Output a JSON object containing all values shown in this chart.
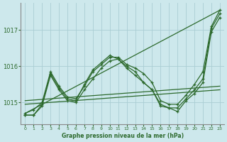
{
  "bg_color": "#cde8ec",
  "grid_color": "#aacdd4",
  "line_color": "#2d6a2d",
  "title": "Graphe pression niveau de la mer (hPa)",
  "xlim": [
    -0.5,
    23.5
  ],
  "ylim": [
    1014.4,
    1017.75
  ],
  "yticks": [
    1015,
    1016,
    1017
  ],
  "xticks": [
    0,
    1,
    2,
    3,
    4,
    5,
    6,
    7,
    8,
    9,
    10,
    11,
    12,
    13,
    14,
    15,
    16,
    17,
    18,
    19,
    20,
    21,
    22,
    23
  ],
  "series": {
    "line_diag": {
      "x": [
        0,
        23
      ],
      "y": [
        1014.7,
        1017.55
      ]
    },
    "line_flat1": {
      "x": [
        0,
        23
      ],
      "y": [
        1015.05,
        1015.45
      ]
    },
    "line_flat2": {
      "x": [
        0,
        23
      ],
      "y": [
        1014.95,
        1015.35
      ]
    },
    "line1": {
      "x": [
        0,
        1,
        2,
        3,
        4,
        5,
        6,
        7,
        8,
        9,
        10,
        11,
        12,
        13,
        14,
        15,
        16,
        17,
        18,
        19,
        20,
        21,
        22,
        23
      ],
      "y": [
        1014.7,
        1014.8,
        1015.0,
        1015.85,
        1015.45,
        1015.15,
        1015.1,
        1015.45,
        1015.85,
        1016.05,
        1016.25,
        1016.25,
        1016.05,
        1015.95,
        1015.8,
        1015.55,
        1015.05,
        1014.95,
        1014.95,
        1015.2,
        1015.5,
        1015.85,
        1017.1,
        1017.55
      ],
      "marker": "+"
    },
    "line2": {
      "x": [
        0,
        1,
        2,
        3,
        4,
        5,
        6,
        7,
        8,
        9,
        10,
        11,
        12,
        13,
        14,
        15,
        16,
        17,
        18,
        19,
        20,
        21,
        22,
        23
      ],
      "y": [
        1014.65,
        1014.65,
        1014.9,
        1015.75,
        1015.35,
        1015.05,
        1015.0,
        1015.35,
        1015.65,
        1015.95,
        1016.15,
        1016.2,
        1015.95,
        1015.75,
        1015.55,
        1015.35,
        1014.95,
        1014.85,
        1014.85,
        1015.1,
        1015.35,
        1015.65,
        1017.05,
        1017.45
      ],
      "marker": "+"
    },
    "line3": {
      "x": [
        0,
        1,
        2,
        3,
        4,
        5,
        6,
        7,
        8,
        9,
        10,
        11,
        12,
        13,
        14,
        15,
        16,
        17,
        18,
        19,
        20,
        21,
        22,
        23
      ],
      "y": [
        1014.65,
        1014.65,
        1014.95,
        1015.8,
        1015.4,
        1015.1,
        1015.05,
        1015.5,
        1015.9,
        1016.1,
        1016.3,
        1016.2,
        1016.0,
        1015.85,
        1015.55,
        1015.35,
        1014.9,
        1014.85,
        1014.75,
        1015.05,
        1015.25,
        1015.55,
        1016.95,
        1017.35
      ],
      "marker": "+"
    }
  }
}
